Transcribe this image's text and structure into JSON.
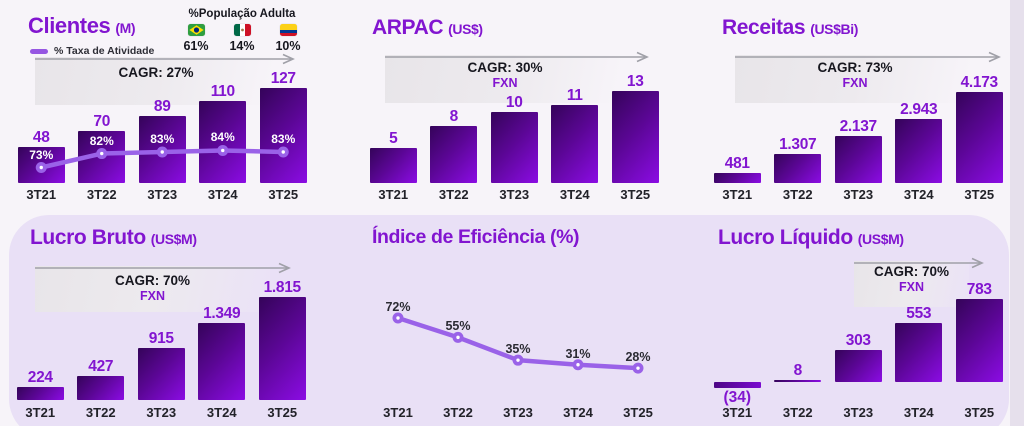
{
  "slide": {
    "background": "#f7f4f9",
    "panel_color": "#e9e0f6",
    "accent_purple": "#8215d0",
    "bar_gradient": [
      "#340459",
      "#8b0ce4"
    ],
    "line_color": "#9a62e8"
  },
  "chart_data": [
    {
      "type": "bar",
      "title": "Clientes",
      "unit": "(M)",
      "legend": "% Taxa de Atividade",
      "cagr": "CAGR: 27%",
      "categories": [
        "3T21",
        "3T22",
        "3T23",
        "3T24",
        "3T25"
      ],
      "values": [
        48,
        70,
        89,
        110,
        127
      ],
      "bar_labels": [
        "48",
        "70",
        "89",
        "110",
        "127"
      ],
      "line_series": {
        "name": "% Taxa de Atividade",
        "values": [
          73,
          82,
          83,
          84,
          83
        ],
        "labels": [
          "73%",
          "82%",
          "83%",
          "84%",
          "83%"
        ]
      },
      "adult_population": {
        "header": "%População Adulta",
        "items": [
          {
            "country": "Brasil",
            "flag": "brazil-flag",
            "value": "61%"
          },
          {
            "country": "México",
            "flag": "mexico-flag",
            "value": "14%"
          },
          {
            "country": "Colômbia",
            "flag": "colombia-flag",
            "value": "10%"
          }
        ]
      }
    },
    {
      "type": "bar",
      "title": "ARPAC",
      "unit": "(US$)",
      "cagr": "CAGR: 30%",
      "fxn": "FXN",
      "categories": [
        "3T21",
        "3T22",
        "3T23",
        "3T24",
        "3T25"
      ],
      "values": [
        5,
        8,
        10,
        11,
        13
      ],
      "bar_labels": [
        "5",
        "8",
        "10",
        "11",
        "13"
      ]
    },
    {
      "type": "bar",
      "title": "Receitas",
      "unit": "(US$Bi)",
      "cagr": "CAGR: 73%",
      "fxn": "FXN",
      "categories": [
        "3T21",
        "3T22",
        "3T23",
        "3T24",
        "3T25"
      ],
      "values": [
        481,
        1307,
        2137,
        2943,
        4173
      ],
      "bar_labels": [
        "481",
        "1.307",
        "2.137",
        "2.943",
        "4.173"
      ]
    },
    {
      "type": "bar",
      "title": "Lucro Bruto",
      "unit": "(US$M)",
      "cagr": "CAGR: 70%",
      "fxn": "FXN",
      "categories": [
        "3T21",
        "3T22",
        "3T23",
        "3T24",
        "3T25"
      ],
      "values": [
        224,
        427,
        915,
        1349,
        1815
      ],
      "bar_labels": [
        "224",
        "427",
        "915",
        "1.349",
        "1.815"
      ]
    },
    {
      "type": "line",
      "title": "Índice de Eficiência (%)",
      "unit": "",
      "categories": [
        "3T21",
        "3T22",
        "3T23",
        "3T24",
        "3T25"
      ],
      "values": [
        72,
        55,
        35,
        31,
        28
      ],
      "point_labels": [
        "72%",
        "55%",
        "35%",
        "31%",
        "28%"
      ]
    },
    {
      "type": "bar",
      "title": "Lucro Líquido",
      "unit": "(US$M)",
      "cagr": "CAGR: 70%",
      "fxn": "FXN",
      "categories": [
        "3T21",
        "3T22",
        "3T23",
        "3T24",
        "3T25"
      ],
      "values": [
        -34,
        8,
        303,
        553,
        783
      ],
      "bar_labels": [
        "(34)",
        "8",
        "303",
        "553",
        "783"
      ]
    }
  ]
}
